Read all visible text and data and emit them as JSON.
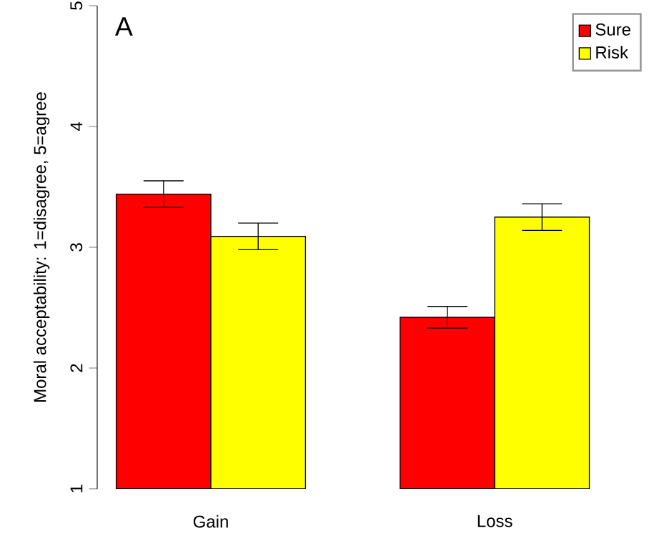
{
  "chart_data": {
    "type": "bar",
    "ylabel": "Moral acceptability: 1=disagree, 5=agree",
    "annotations": [
      "A"
    ],
    "categories": [
      "Gain",
      "Loss"
    ],
    "series": [
      {
        "name": "Sure",
        "color": "#ff0000",
        "values": [
          3.44,
          2.42
        ],
        "errors": [
          0.11,
          0.09
        ]
      },
      {
        "name": "Risk",
        "color": "#ffff00",
        "values": [
          3.09,
          3.25
        ],
        "errors": [
          0.11,
          0.11
        ]
      }
    ],
    "ylim": [
      1,
      5
    ],
    "yticks": [
      1,
      2,
      3,
      4,
      5
    ],
    "legend": "top right"
  }
}
